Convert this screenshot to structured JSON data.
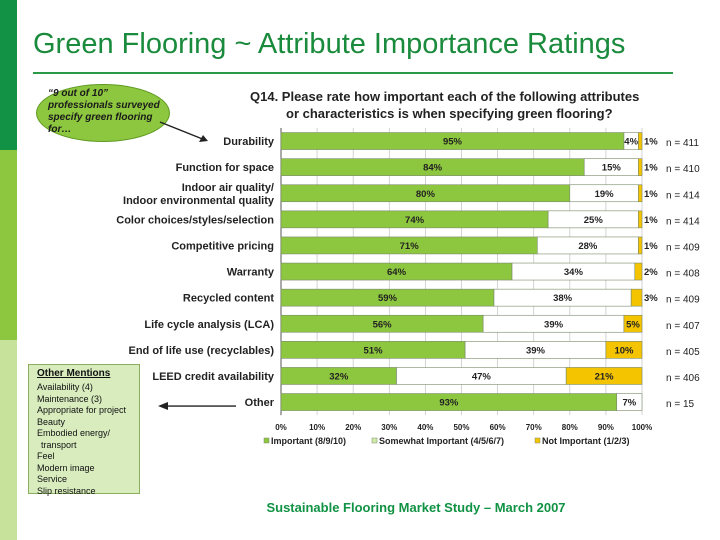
{
  "slide": {
    "title": "Green Flooring ~ Attribute Importance Ratings",
    "question_line1": "Q14. Please rate how important each of the following attributes",
    "question_line2": "or characteristics is when specifying green flooring?",
    "footer": "Sustainable Flooring Market Study – March 2007",
    "callout_text": "“9 out of 10” professionals surveyed specify green flooring for…",
    "colors": {
      "accent_dark": "#119244",
      "accent_mid": "#8dc63f",
      "accent_light": "#c7e39b"
    }
  },
  "other_mentions": {
    "title": "Other Mentions",
    "items": [
      "Availability (4)",
      "Maintenance (3)",
      "Appropriate for project",
      "Beauty",
      "Embodied energy/",
      "transport",
      "Feel",
      "Modern image",
      "Service",
      "Slip resistance"
    ]
  },
  "chart_data": {
    "type": "bar",
    "orientation": "horizontal",
    "stacked": true,
    "categories": [
      [
        "Durability"
      ],
      [
        "Function for space"
      ],
      [
        "Indoor air quality/",
        "Indoor environmental quality"
      ],
      [
        "Color choices/styles/selection"
      ],
      [
        "Competitive pricing"
      ],
      [
        "Warranty"
      ],
      [
        "Recycled content"
      ],
      [
        "Life cycle analysis (LCA)"
      ],
      [
        "End of life use (recyclables)"
      ],
      [
        "LEED credit availability"
      ],
      [
        "Other"
      ]
    ],
    "series": [
      {
        "name": "Important (8/9/10)",
        "color": "#8dc63f",
        "values": [
          95,
          84,
          80,
          74,
          71,
          64,
          59,
          56,
          51,
          32,
          93
        ]
      },
      {
        "name": "Somewhat Important (4/5/6/7)",
        "color": "#ffffff",
        "values": [
          4,
          15,
          19,
          25,
          28,
          34,
          38,
          39,
          39,
          47,
          7
        ]
      },
      {
        "name": "Not Important (1/2/3)",
        "color": "#f5c400",
        "values": [
          1,
          1,
          1,
          1,
          1,
          2,
          3,
          5,
          10,
          21,
          0
        ]
      }
    ],
    "bar_labels": [
      [
        "95%",
        "4%",
        "1%"
      ],
      [
        "84%",
        "15%",
        "1%"
      ],
      [
        "80%",
        "19%",
        "1%"
      ],
      [
        "74%",
        "25%",
        "1%"
      ],
      [
        "71%",
        "28%",
        "1%"
      ],
      [
        "64%",
        "34%",
        "2%"
      ],
      [
        "59%",
        "38%",
        "3%"
      ],
      [
        "56%",
        "39%",
        "5%"
      ],
      [
        "51%",
        "39%",
        "10%"
      ],
      [
        "32%",
        "47%",
        "21%"
      ],
      [
        "93%",
        "7%",
        ""
      ]
    ],
    "n_labels": [
      "n = 411",
      "n = 410",
      "n = 414",
      "n = 414",
      "n = 409",
      "n = 408",
      "n = 409",
      "n = 407",
      "n = 405",
      "n = 406",
      "n = 15"
    ],
    "xlim": [
      0,
      100
    ],
    "x_ticks": [
      "0%",
      "10%",
      "20%",
      "30%",
      "40%",
      "50%",
      "60%",
      "70%",
      "80%",
      "90%",
      "100%"
    ],
    "grid": true,
    "legend_position": "bottom"
  }
}
